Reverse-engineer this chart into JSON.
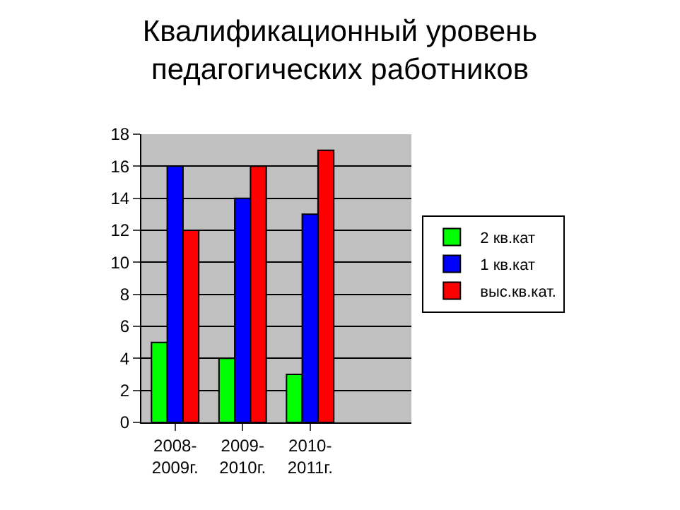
{
  "chart_data": {
    "type": "bar",
    "title": "Квалификационный уровень педагогических работников",
    "categories": [
      "2008-2009г.",
      "2009-2010г.",
      "2010-2011г.",
      null
    ],
    "series": [
      {
        "name": "2 кв.кат",
        "color": "#00ff00",
        "values": [
          5,
          4,
          3,
          null
        ]
      },
      {
        "name": "1 кв.кат",
        "color": "#0000ff",
        "values": [
          16,
          14,
          13,
          null
        ]
      },
      {
        "name": "выс.кв.кат.",
        "color": "#ff0000",
        "values": [
          12,
          16,
          17,
          null
        ]
      }
    ],
    "ylim": [
      0,
      18
    ],
    "yticks": [
      0,
      2,
      4,
      6,
      8,
      10,
      12,
      14,
      16,
      18
    ],
    "grid": "y",
    "legend": "right"
  }
}
